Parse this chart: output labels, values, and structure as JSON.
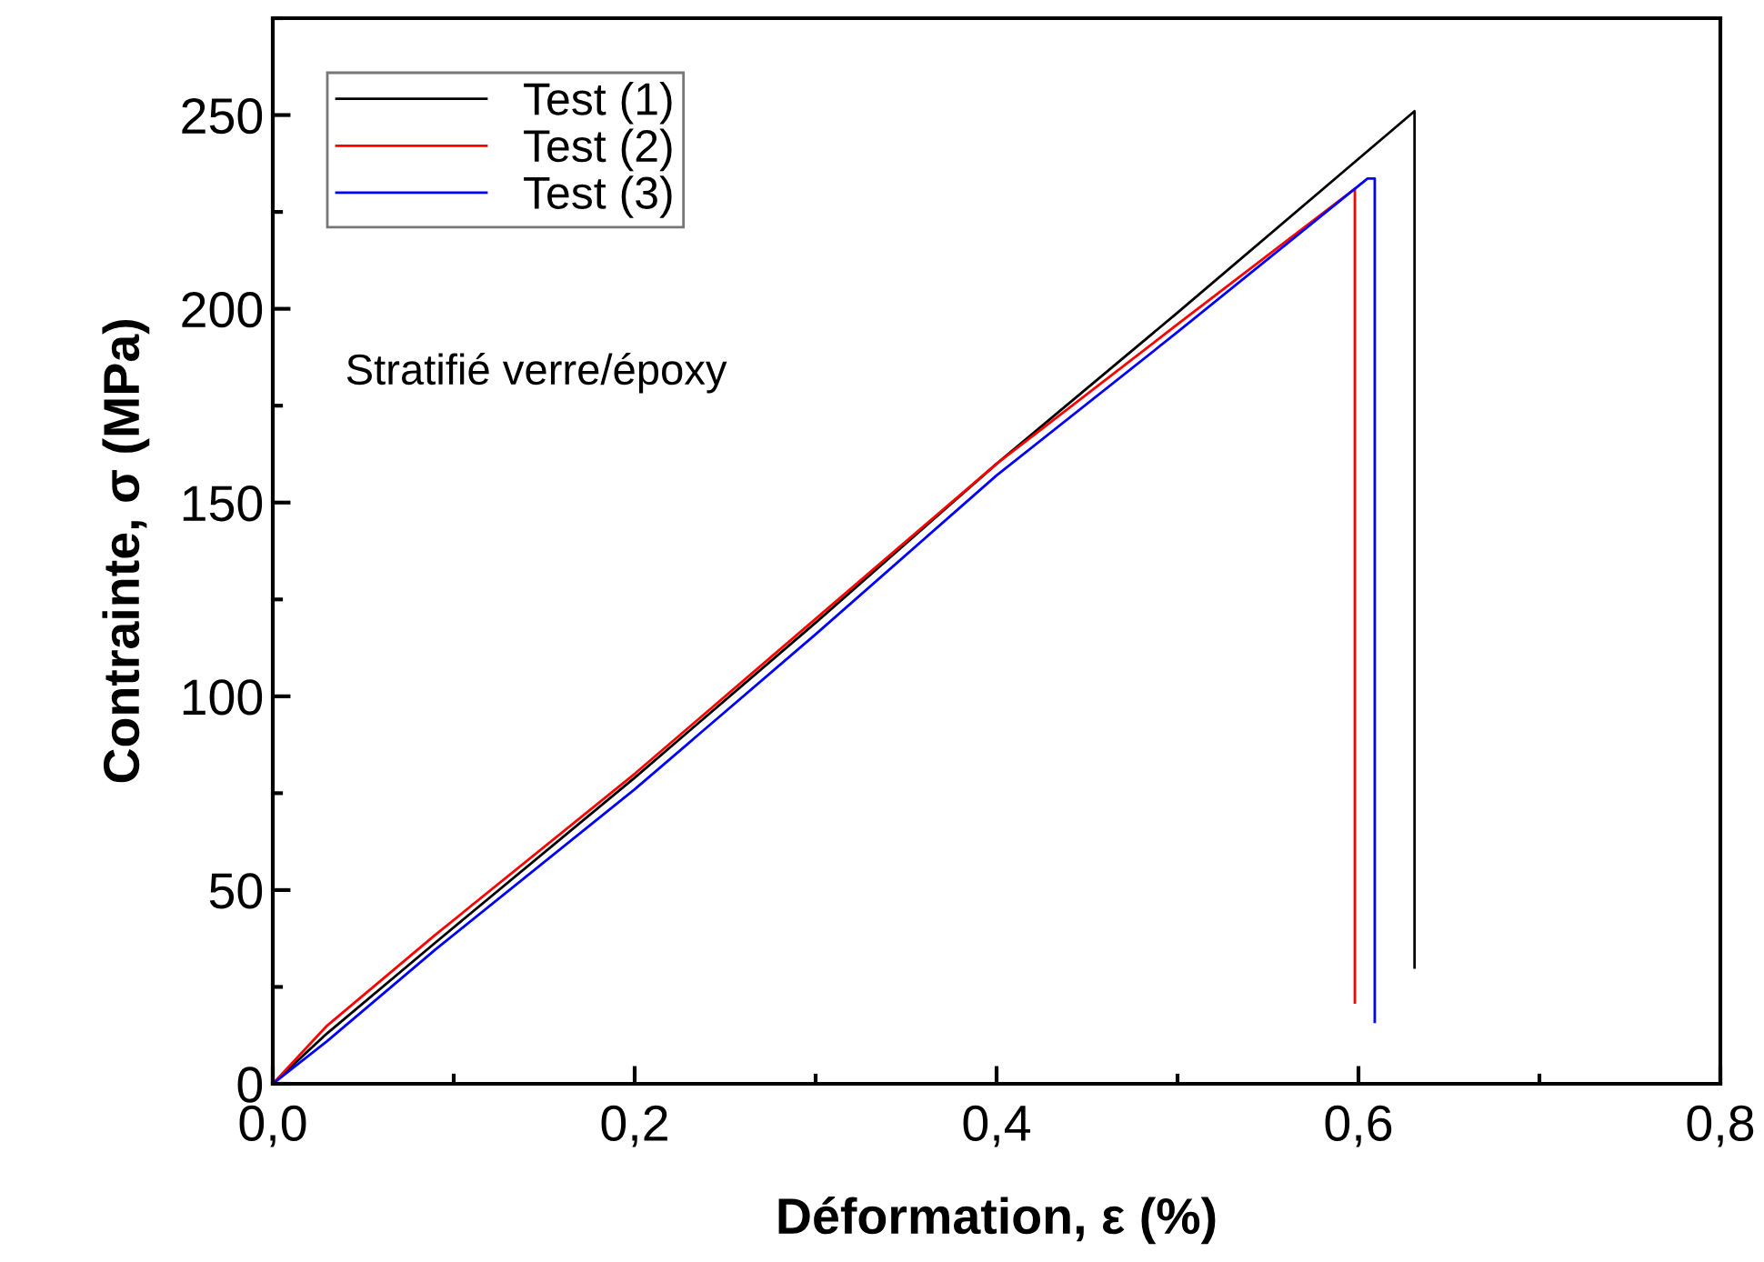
{
  "chart_data": {
    "type": "line",
    "xlabel": "Déformation, ε (%)",
    "ylabel": "Contrainte, σ (MPa)",
    "xlim": [
      0,
      0.8
    ],
    "ylim": [
      0,
      275
    ],
    "xticks": [
      {
        "value": 0,
        "label": "0,0"
      },
      {
        "value": 0.2,
        "label": "0,2"
      },
      {
        "value": 0.4,
        "label": "0,4"
      },
      {
        "value": 0.6,
        "label": "0,6"
      },
      {
        "value": 0.8,
        "label": "0,8"
      }
    ],
    "yticks": [
      0,
      50,
      100,
      150,
      200,
      250
    ],
    "grid": false,
    "legend": "top left",
    "marker": "none",
    "line_style": "solid",
    "annotations": [
      "Stratifié verre/époxy"
    ],
    "series": [
      {
        "name": "Test (1)",
        "color": "#000000",
        "x": [
          0,
          0.03,
          0.09,
          0.2,
          0.3,
          0.4,
          0.5,
          0.631,
          0.631
        ],
        "values": [
          0,
          13,
          36.5,
          79,
          119,
          160,
          199,
          251,
          30
        ]
      },
      {
        "name": "Test (2)",
        "color": "#ff0000",
        "x": [
          0,
          0.03,
          0.09,
          0.2,
          0.3,
          0.4,
          0.5,
          0.598,
          0.598
        ],
        "values": [
          0,
          15,
          38.5,
          80,
          120,
          160,
          196,
          231,
          21
        ]
      },
      {
        "name": "Test (3)",
        "color": "#0000ff",
        "x": [
          0,
          0.03,
          0.09,
          0.2,
          0.3,
          0.4,
          0.5,
          0.605,
          0.609,
          0.609
        ],
        "values": [
          0,
          11,
          34.7,
          76,
          116,
          157,
          194,
          233.6,
          233.6,
          16
        ]
      }
    ]
  }
}
